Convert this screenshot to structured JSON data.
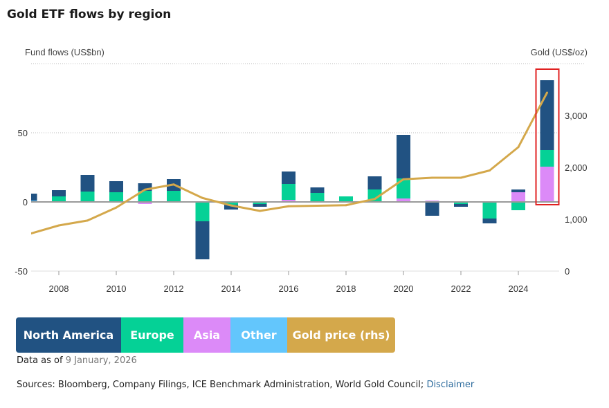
{
  "title": "Gold ETF flows by region",
  "chart_data": {
    "type": "bar",
    "title": "Gold ETF flows by region",
    "ylabel": "Fund flows (US$bn)",
    "y2label": "Gold (US$/oz)",
    "ylim": [
      -50,
      100
    ],
    "y2lim": [
      0,
      4000
    ],
    "yticks": [
      -50,
      0,
      50
    ],
    "y2ticks": [
      "0",
      "1,000",
      "2,000",
      "3,000"
    ],
    "xticks": [
      "2008",
      "2010",
      "2012",
      "2014",
      "2016",
      "2018",
      "2020",
      "2022",
      "2024"
    ],
    "grid": true,
    "stacked": true,
    "legend_position": "bottom",
    "highlight_year": 2025,
    "highlight_color": "#e02020",
    "x": [
      2007,
      2008,
      2009,
      2010,
      2011,
      2012,
      2013,
      2014,
      2015,
      2016,
      2017,
      2018,
      2019,
      2020,
      2021,
      2022,
      2023,
      2024,
      2025
    ],
    "series": [
      {
        "name": "North America",
        "color": "#215282",
        "values": [
          5,
          4.5,
          12,
          8,
          5.5,
          8.5,
          -27.5,
          -3.5,
          -2,
          9,
          4,
          0,
          9.5,
          31.5,
          -10,
          -2,
          -3.5,
          2,
          50.5
        ]
      },
      {
        "name": "Europe",
        "color": "#05d196",
        "values": [
          0,
          4,
          7,
          7,
          8,
          8,
          -14,
          -2,
          -1.5,
          11.5,
          6.5,
          4,
          9,
          14.5,
          0,
          -1.5,
          -12,
          -6,
          12
        ]
      },
      {
        "name": "Asia",
        "color": "#dc8af8",
        "values": [
          0,
          0,
          0,
          0,
          -1.5,
          0,
          0,
          0,
          0,
          1.5,
          0,
          0,
          0,
          2.5,
          1,
          0,
          0.5,
          6.5,
          25.5
        ]
      },
      {
        "name": "Other",
        "color": "#63c6fc",
        "values": [
          1,
          0,
          0.5,
          0,
          0,
          0,
          0,
          0,
          0,
          0,
          0,
          0,
          0,
          0,
          0,
          0,
          0,
          0.5,
          0
        ]
      }
    ],
    "line": {
      "name": "Gold price (rhs)",
      "color": "#d4a84b",
      "axis": "right",
      "values": [
        720,
        880,
        975,
        1225,
        1570,
        1670,
        1410,
        1265,
        1160,
        1250,
        1260,
        1270,
        1390,
        1770,
        1800,
        1800,
        1940,
        2390,
        3440
      ]
    }
  },
  "legend": [
    "North America",
    "Europe",
    "Asia",
    "Other",
    "Gold price (rhs)"
  ],
  "footer": {
    "asof_label": "Data as of",
    "asof_date": "9 January, 2026",
    "sources": "Sources: Bloomberg, Company Filings, ICE Benchmark Administration, World Gold Council;",
    "disclaimer": "Disclaimer"
  }
}
